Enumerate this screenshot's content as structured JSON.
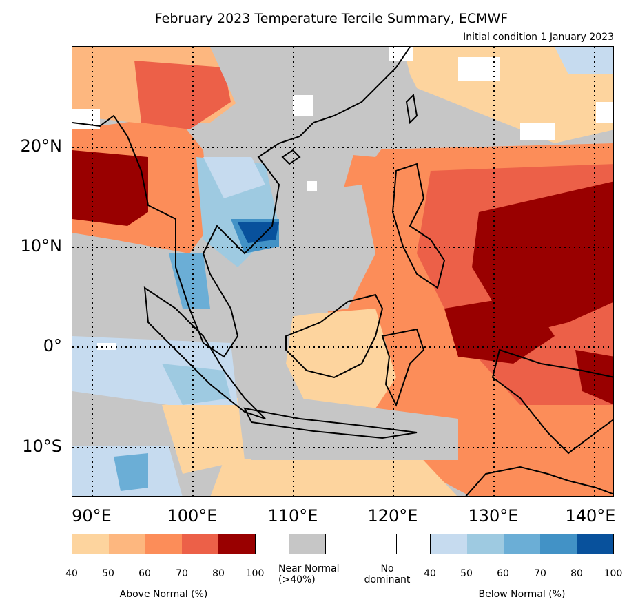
{
  "title": "February 2023 Temperature Tercile Summary, ECMWF",
  "subtitle": "Initial condition 1 January 2023",
  "map": {
    "type": "tercile-summary-map",
    "lon_range": [
      87,
      141
    ],
    "lat_range": [
      -15,
      30
    ],
    "lat_labels": [
      "20°N",
      "10°N",
      "0°",
      "10°S"
    ],
    "lon_labels": [
      "90°E",
      "100°E",
      "110°E",
      "120°E",
      "130°E",
      "140°E"
    ],
    "gridlines": "dotted",
    "colors": {
      "near_normal": "#c6c6c6",
      "no_dominant": "#ffffff",
      "above": [
        "#fdd49e",
        "#fdb77f",
        "#fc8d59",
        "#ec6048",
        "#990000"
      ],
      "below": [
        "#c6dbef",
        "#9ecae1",
        "#6baed6",
        "#4292c6",
        "#08519c"
      ]
    }
  },
  "legend": {
    "above": {
      "label": "Above Normal (%)",
      "ticks": [
        "40",
        "50",
        "60",
        "70",
        "80",
        "100"
      ]
    },
    "near_normal": {
      "label": "Near Normal\n(>40%)"
    },
    "no_dominant": {
      "label": "No\ndominant"
    },
    "below": {
      "label": "Below Normal (%)",
      "ticks": [
        "40",
        "50",
        "60",
        "70",
        "80",
        "100"
      ]
    }
  }
}
